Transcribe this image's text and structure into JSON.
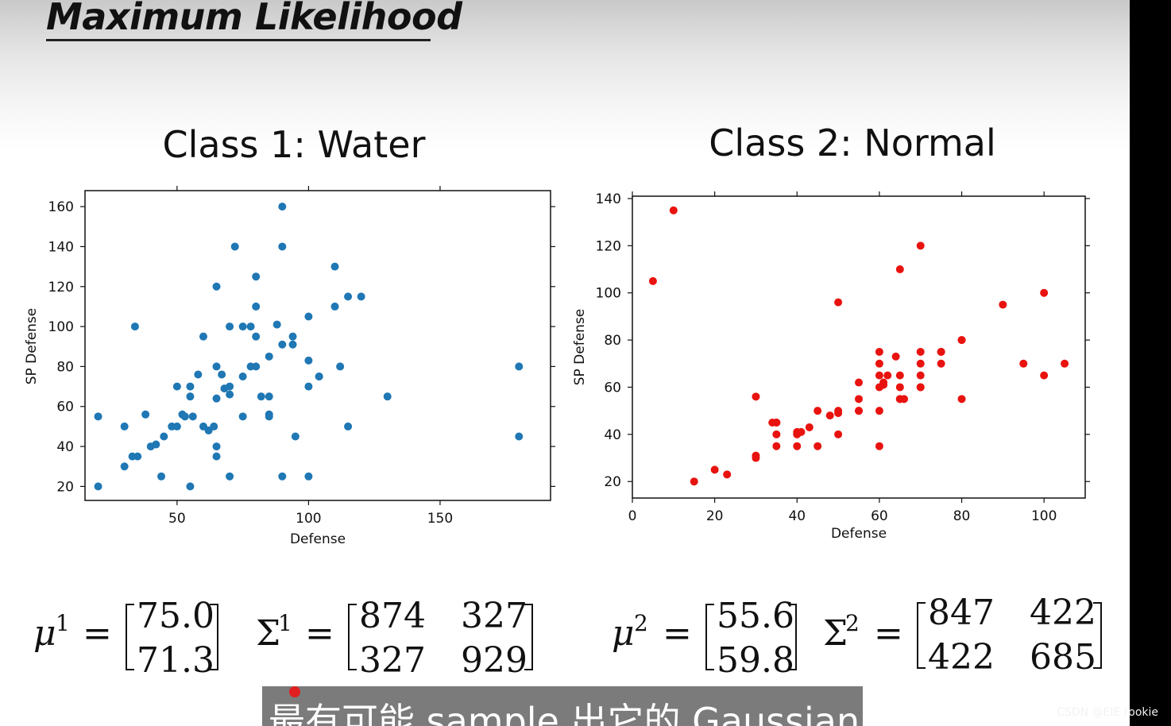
{
  "slide": {
    "title": "Maximum Likelihood"
  },
  "chart_data": [
    {
      "type": "scatter",
      "title": "Class 1: Water",
      "xlabel": "Defense",
      "ylabel": "SP Defense",
      "xlim": [
        15,
        192
      ],
      "ylim": [
        13,
        168
      ],
      "xticks": [
        50,
        100,
        150
      ],
      "yticks": [
        20,
        40,
        60,
        80,
        100,
        120,
        140,
        160
      ],
      "color": "#1f77b4",
      "series": [
        {
          "x": [
            20,
            20,
            30,
            30,
            33,
            34,
            35,
            38,
            40,
            42,
            44,
            45,
            48,
            50,
            50,
            52,
            53,
            55,
            55,
            55,
            56,
            58,
            60,
            60,
            62,
            64,
            65,
            65,
            65,
            65,
            65,
            67,
            68,
            70,
            70,
            70,
            70,
            72,
            75,
            75,
            75,
            78,
            78,
            80,
            80,
            80,
            80,
            82,
            85,
            85,
            85,
            85,
            88,
            90,
            90,
            90,
            90,
            94,
            94,
            95,
            100,
            100,
            100,
            100,
            104,
            104,
            110,
            110,
            112,
            115,
            115,
            120,
            130,
            180,
            180
          ],
          "y": [
            55,
            20,
            50,
            30,
            35,
            100,
            35,
            56,
            40,
            41,
            25,
            45,
            50,
            70,
            50,
            56,
            55,
            70,
            65,
            20,
            55,
            76,
            95,
            50,
            48,
            50,
            64,
            80,
            40,
            35,
            120,
            76,
            69,
            70,
            66,
            25,
            100,
            140,
            75,
            100,
            55,
            80,
            100,
            80,
            125,
            95,
            110,
            65,
            56,
            85,
            55,
            65,
            101,
            140,
            160,
            91,
            25,
            95,
            91,
            45,
            105,
            83,
            70,
            25,
            75,
            75,
            130,
            110,
            80,
            115,
            50,
            115,
            65,
            80,
            45
          ]
        }
      ]
    },
    {
      "type": "scatter",
      "title": "Class 2: Normal",
      "xlabel": "Defense",
      "ylabel": "SP Defense",
      "xlim": [
        0,
        110
      ],
      "ylim": [
        13,
        141
      ],
      "xticks": [
        0,
        20,
        40,
        60,
        80,
        100
      ],
      "yticks": [
        20,
        40,
        60,
        80,
        100,
        120,
        140
      ],
      "color": "#e8130f",
      "series": [
        {
          "x": [
            5,
            10,
            15,
            20,
            23,
            30,
            30,
            30,
            34,
            35,
            35,
            35,
            35,
            40,
            40,
            40,
            41,
            43,
            45,
            45,
            48,
            50,
            50,
            50,
            50,
            55,
            55,
            55,
            55,
            60,
            60,
            60,
            60,
            60,
            60,
            61,
            61,
            62,
            64,
            65,
            65,
            65,
            65,
            65,
            66,
            70,
            70,
            70,
            70,
            70,
            70,
            75,
            75,
            75,
            80,
            80,
            80,
            90,
            95,
            100,
            100,
            105
          ],
          "y": [
            105,
            135,
            20,
            25,
            23,
            31,
            30,
            56,
            45,
            45,
            35,
            40,
            45,
            40,
            35,
            41,
            41,
            43,
            50,
            35,
            48,
            49,
            50,
            96,
            40,
            62,
            55,
            50,
            50,
            75,
            70,
            65,
            60,
            35,
            50,
            61,
            62,
            65,
            73,
            55,
            55,
            60,
            65,
            110,
            55,
            120,
            75,
            70,
            65,
            60,
            60,
            75,
            70,
            75,
            80,
            80,
            55,
            95,
            70,
            100,
            65,
            70
          ]
        }
      ]
    }
  ],
  "formulas": {
    "class1": {
      "mu_symbol": "μ",
      "mu_sup": "1",
      "eq": "=",
      "mu": [
        "75.0",
        "71.3"
      ],
      "sigma_symbol": "Σ",
      "sigma_sup": "1",
      "sigma": [
        [
          "874",
          "327"
        ],
        [
          "327",
          "929"
        ]
      ]
    },
    "class2": {
      "mu_symbol": "μ",
      "mu_sup": "2",
      "eq": "=",
      "mu": [
        "55.6",
        "59.8"
      ],
      "sigma_symbol": "Σ",
      "sigma_sup": "2",
      "sigma": [
        [
          "847",
          "422"
        ],
        [
          "422",
          "685"
        ]
      ]
    }
  },
  "caption": {
    "text": "最有可能 sample 出它的 Gaussian"
  },
  "watermark": {
    "text": "CSDN @EIE rookie"
  }
}
